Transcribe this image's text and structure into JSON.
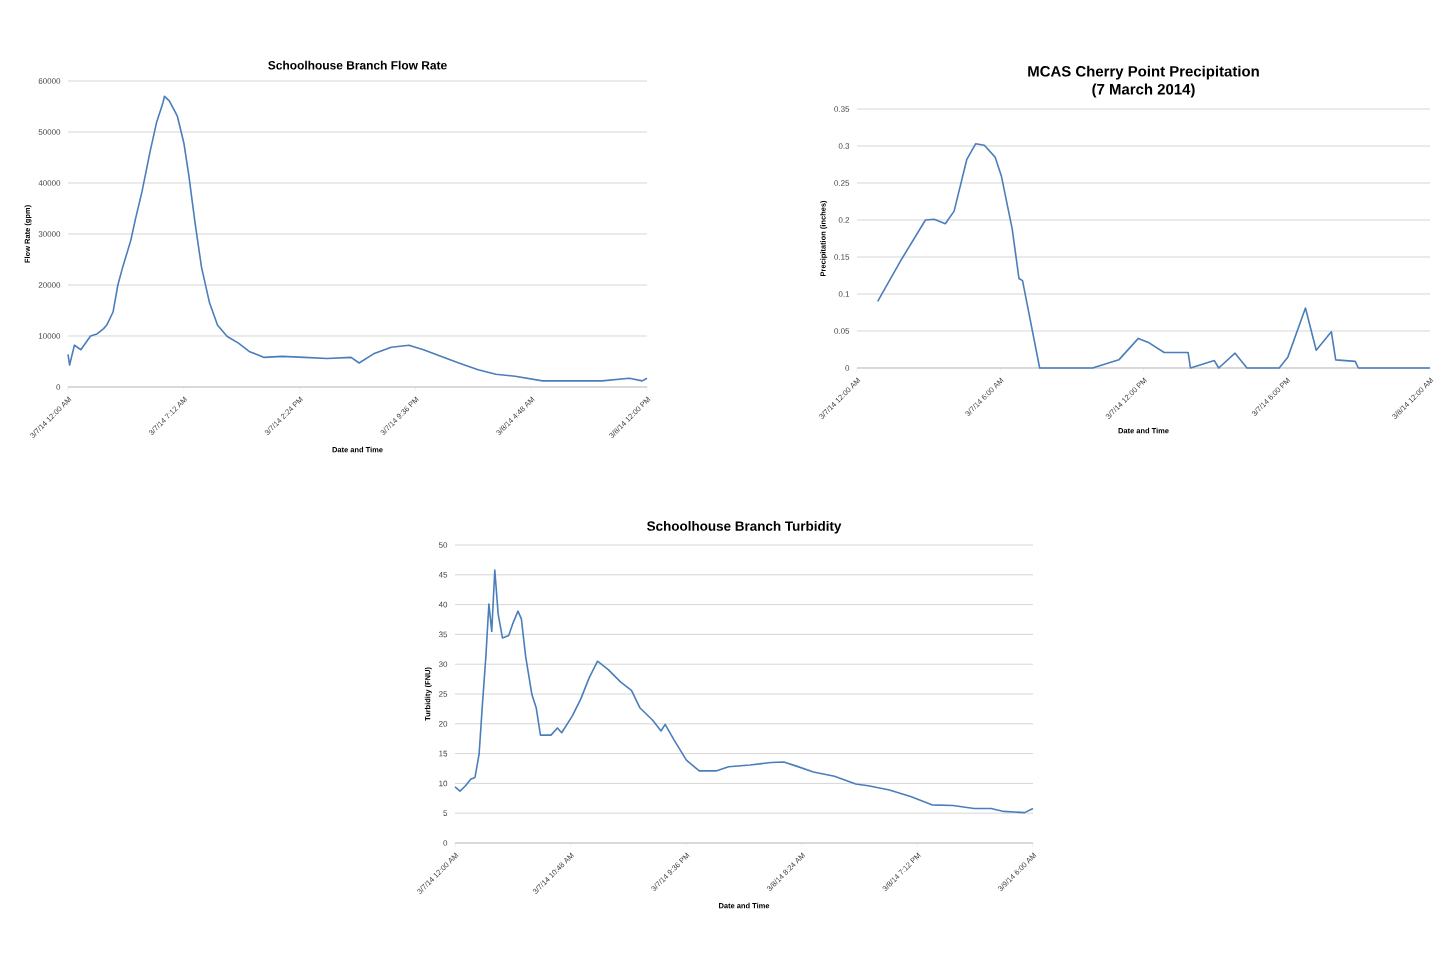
{
  "chart_data": [
    {
      "type": "line",
      "title": "Schoolhouse Branch Flow Rate",
      "xlabel": "Date and Time",
      "ylabel": "Flow Rate (gpm)",
      "color": "#4a7ebb",
      "grid": "y",
      "x": [
        "2014-03-07T00:00",
        "2014-03-07T00:06",
        "2014-03-07T00:24",
        "2014-03-07T00:48",
        "2014-03-07T01:24",
        "2014-03-07T01:48",
        "2014-03-07T02:12",
        "2014-03-07T02:24",
        "2014-03-07T02:48",
        "2014-03-07T03:06",
        "2014-03-07T03:24",
        "2014-03-07T03:54",
        "2014-03-07T04:12",
        "2014-03-07T04:36",
        "2014-03-07T05:06",
        "2014-03-07T05:30",
        "2014-03-07T05:54",
        "2014-03-07T06:00",
        "2014-03-07T06:18",
        "2014-03-07T06:48",
        "2014-03-07T07:12",
        "2014-03-07T07:30",
        "2014-03-07T07:54",
        "2014-03-07T08:18",
        "2014-03-07T08:48",
        "2014-03-07T09:18",
        "2014-03-07T09:54",
        "2014-03-07T10:36",
        "2014-03-07T11:18",
        "2014-03-07T12:12",
        "2014-03-07T13:18",
        "2014-03-07T14:42",
        "2014-03-07T16:06",
        "2014-03-07T17:36",
        "2014-03-07T18:06",
        "2014-03-07T19:00",
        "2014-03-07T20:06",
        "2014-03-07T21:12",
        "2014-03-07T22:06",
        "2014-03-07T23:12",
        "2014-03-08T00:18",
        "2014-03-08T01:30",
        "2014-03-08T02:36",
        "2014-03-08T03:48",
        "2014-03-08T05:30",
        "2014-03-08T07:12",
        "2014-03-08T09:12",
        "2014-03-08T10:54",
        "2014-03-08T11:42",
        "2014-03-08T12:00"
      ],
      "values": [
        6400,
        4300,
        8200,
        7300,
        10000,
        10400,
        11400,
        12100,
        14700,
        20000,
        23500,
        28700,
        33000,
        38300,
        46100,
        51800,
        55700,
        57000,
        56100,
        53100,
        47900,
        41800,
        32200,
        23500,
        16500,
        12100,
        9900,
        8600,
        6900,
        5800,
        6000,
        5800,
        5600,
        5800,
        4700,
        6500,
        7800,
        8200,
        7300,
        6000,
        4700,
        3400,
        2500,
        2100,
        1200,
        1200,
        1200,
        1700,
        1200,
        1700
      ],
      "xlim": [
        "2014-03-07T00:00",
        "2014-03-08T12:00"
      ],
      "ylim": [
        0,
        60000
      ],
      "xticks": [
        {
          "value": "2014-03-07T00:00",
          "label": "3/7/14 12:00 AM"
        },
        {
          "value": "2014-03-07T07:12",
          "label": "3/7/14 7:12 AM"
        },
        {
          "value": "2014-03-07T14:24",
          "label": "3/7/14 2:24 PM"
        },
        {
          "value": "2014-03-07T21:36",
          "label": "3/7/14 9:36 PM"
        },
        {
          "value": "2014-03-08T04:48",
          "label": "3/8/14 4:48 AM"
        },
        {
          "value": "2014-03-08T12:00",
          "label": "3/8/14 12:00 PM"
        }
      ],
      "yticks": [
        0,
        10000,
        20000,
        30000,
        40000,
        50000,
        60000
      ]
    },
    {
      "type": "line",
      "title": "MCAS Cherry Point Precipitation",
      "subtitle": "(7 March 2014)",
      "xlabel": "Date and Time",
      "ylabel": "Precipitation (inches)",
      "color": "#4a7ebb",
      "grid": "y",
      "x": [
        "2014-03-07T00:52",
        "2014-03-07T01:52",
        "2014-03-07T02:52",
        "2014-03-07T03:14",
        "2014-03-07T03:42",
        "2014-03-07T04:04",
        "2014-03-07T04:36",
        "2014-03-07T04:58",
        "2014-03-07T05:20",
        "2014-03-07T05:47",
        "2014-03-07T06:03",
        "2014-03-07T06:30",
        "2014-03-07T06:47",
        "2014-03-07T06:56",
        "2014-03-07T07:39",
        "2014-03-07T09:52",
        "2014-03-07T10:58",
        "2014-03-07T11:47",
        "2014-03-07T12:14",
        "2014-03-07T12:52",
        "2014-03-07T13:52",
        "2014-03-07T13:58",
        "2014-03-07T14:58",
        "2014-03-07T15:09",
        "2014-03-07T15:50",
        "2014-03-07T16:20",
        "2014-03-07T17:41",
        "2014-03-07T18:03",
        "2014-03-07T18:47",
        "2014-03-07T19:14",
        "2014-03-07T19:52",
        "2014-03-07T20:03",
        "2014-03-07T20:52",
        "2014-03-07T21:00",
        "2014-03-08T00:00"
      ],
      "values": [
        0.09,
        0.147,
        0.2,
        0.201,
        0.195,
        0.212,
        0.282,
        0.303,
        0.301,
        0.285,
        0.259,
        0.188,
        0.121,
        0.118,
        0,
        0,
        0.011,
        0.04,
        0.034,
        0.021,
        0.021,
        0,
        0.01,
        0,
        0.02,
        0,
        0,
        0.015,
        0.081,
        0.024,
        0.049,
        0.011,
        0.009,
        0,
        0
      ],
      "xlim": [
        "2014-03-07T00:00",
        "2014-03-08T00:00"
      ],
      "ylim": [
        0,
        0.35
      ],
      "xticks": [
        {
          "value": "2014-03-07T00:00",
          "label": "3/7/14 12:00 AM"
        },
        {
          "value": "2014-03-07T06:00",
          "label": "3/7/14 6:00 AM"
        },
        {
          "value": "2014-03-07T12:00",
          "label": "3/7/14 12:00 PM"
        },
        {
          "value": "2014-03-07T18:00",
          "label": "3/7/14 6:00 PM"
        },
        {
          "value": "2014-03-08T00:00",
          "label": "3/8/14 12:00 AM"
        }
      ],
      "yticks": [
        0,
        0.05,
        0.1,
        0.15,
        0.2,
        0.25,
        0.3,
        0.35
      ]
    },
    {
      "type": "line",
      "title": "Schoolhouse Branch Turbidity",
      "xlabel": "Date and Time",
      "ylabel": "Turbidity (FNU)",
      "color": "#4a7ebb",
      "grid": "y",
      "x": [
        "2014-03-07T00:00",
        "2014-03-07T00:28",
        "2014-03-07T00:59",
        "2014-03-07T01:28",
        "2014-03-07T01:52",
        "2014-03-07T02:15",
        "2014-03-07T02:34",
        "2014-03-07T02:53",
        "2014-03-07T03:10",
        "2014-03-07T03:26",
        "2014-03-07T03:43",
        "2014-03-07T04:02",
        "2014-03-07T04:26",
        "2014-03-07T05:01",
        "2014-03-07T05:25",
        "2014-03-07T05:53",
        "2014-03-07T06:12",
        "2014-03-07T06:36",
        "2014-03-07T07:11",
        "2014-03-07T07:35",
        "2014-03-07T07:59",
        "2014-03-07T08:58",
        "2014-03-07T09:34",
        "2014-03-07T09:58",
        "2014-03-07T10:57",
        "2014-03-07T11:44",
        "2014-03-07T12:32",
        "2014-03-07T13:19",
        "2014-03-07T14:19",
        "2014-03-07T15:29",
        "2014-03-07T16:29",
        "2014-03-07T17:16",
        "2014-03-07T18:28",
        "2014-03-07T19:15",
        "2014-03-07T19:38",
        "2014-03-07T20:26",
        "2014-03-07T21:37",
        "2014-03-07T22:49",
        "2014-03-08T00:23",
        "2014-03-08T01:34",
        "2014-03-08T03:33",
        "2014-03-08T05:32",
        "2014-03-08T06:43",
        "2014-03-08T07:54",
        "2014-03-08T09:29",
        "2014-03-08T11:27",
        "2014-03-08T13:26",
        "2014-03-08T14:37",
        "2014-03-08T16:35",
        "2014-03-08T18:34",
        "2014-03-08T20:33",
        "2014-03-08T22:31",
        "2014-03-09T00:30",
        "2014-03-09T02:05",
        "2014-03-09T03:16",
        "2014-03-09T05:13",
        "2014-03-09T06:00"
      ],
      "values": [
        9.4,
        8.7,
        9.6,
        10.7,
        11.0,
        14.9,
        23.4,
        31.3,
        40.1,
        35.5,
        45.8,
        38.4,
        34.4,
        34.8,
        36.9,
        38.9,
        37.6,
        31.3,
        24.9,
        22.7,
        18.1,
        18.1,
        19.3,
        18.5,
        21.3,
        24.1,
        27.7,
        30.5,
        29.1,
        27.0,
        25.6,
        22.7,
        20.6,
        18.8,
        19.9,
        17.4,
        13.9,
        12.1,
        12.1,
        12.8,
        13.1,
        13.5,
        13.6,
        12.9,
        11.9,
        11.2,
        9.9,
        9.6,
        8.9,
        7.8,
        6.4,
        6.3,
        5.8,
        5.8,
        5.3,
        5.1,
        5.8
      ],
      "xlim": [
        "2014-03-07T00:00",
        "2014-03-09T06:00"
      ],
      "ylim": [
        0,
        50
      ],
      "xticks": [
        {
          "value": "2014-03-07T00:00",
          "label": "3/7/14 12:00 AM"
        },
        {
          "value": "2014-03-07T10:48",
          "label": "3/7/14 10:48 AM"
        },
        {
          "value": "2014-03-07T21:36",
          "label": "3/7/14 9:36 PM"
        },
        {
          "value": "2014-03-08T08:24",
          "label": "3/8/14 8:24 AM"
        },
        {
          "value": "2014-03-08T19:12",
          "label": "3/8/14 7:12 PM"
        },
        {
          "value": "2014-03-09T06:00",
          "label": "3/9/14 6:00 AM"
        }
      ],
      "yticks": [
        0,
        5,
        10,
        15,
        20,
        25,
        30,
        35,
        40,
        45,
        50
      ]
    }
  ]
}
